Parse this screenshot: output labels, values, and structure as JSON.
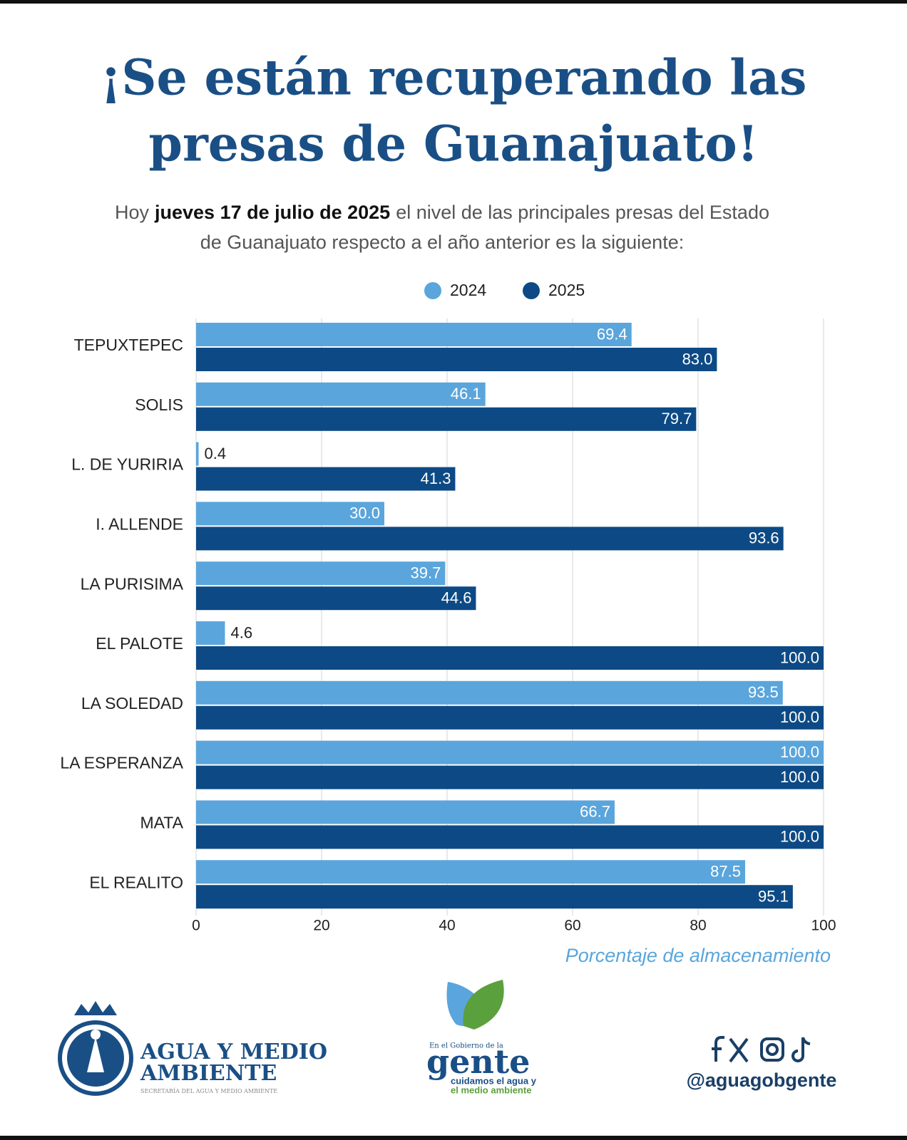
{
  "chart_data": {
    "type": "bar",
    "title": [
      "¡Se están recuperando las",
      "presas de Guanajuato!"
    ],
    "subtitle": [
      "Hoy",
      "jueves 17 de julio de 2025",
      "el nivel de las principales presas del Estado",
      "de Guanajuato respecto a el año anterior es la siguiente:"
    ],
    "categories": [
      "TEPUXTEPEC",
      "SOLIS",
      "L. DE YURIRIA",
      "I. ALLENDE",
      "LA PURISIMA",
      "EL PALOTE",
      "LA SOLEDAD",
      "LA ESPERANZA",
      "MATA",
      "EL REALITO"
    ],
    "series": [
      {
        "name": "2024",
        "color": "#5aa5dc",
        "values": [
          69.4,
          46.1,
          0.4,
          30.0,
          39.7,
          4.6,
          93.5,
          100.0,
          66.7,
          87.5
        ],
        "value_labels": [
          "69.4",
          "46.1",
          "0.4",
          "30.0",
          "39.7",
          "4.6",
          "93.5",
          "100.0",
          "66.7",
          "87.5"
        ]
      },
      {
        "name": "2025",
        "color": "#0d4a85",
        "values": [
          83.0,
          79.7,
          41.3,
          93.6,
          44.6,
          100.0,
          100.0,
          100.0,
          100.0,
          95.1
        ],
        "value_labels": [
          "83.0",
          "79.7",
          "41.3",
          "93.6",
          "44.6",
          "100.0",
          "100.0",
          "100.0",
          "100.0",
          "95.1"
        ]
      }
    ],
    "xlim": [
      0,
      100
    ],
    "xticks": [
      0,
      20,
      40,
      60,
      80,
      100
    ],
    "grid": true,
    "x_label": "Porcentaje de almacenamiento",
    "legend": "top"
  },
  "footer": {
    "agency": [
      "AGUA Y MEDIO",
      "AMBIENTE"
    ],
    "agency_sub": "SECRETARÍA DEL AGUA Y MEDIO AMBIENTE",
    "gov": "En el Gobierno de la",
    "brand": "gente",
    "tagline": [
      "cuidamos el agua y",
      "el medio ambiente"
    ],
    "handle": "@aguagobgente"
  }
}
